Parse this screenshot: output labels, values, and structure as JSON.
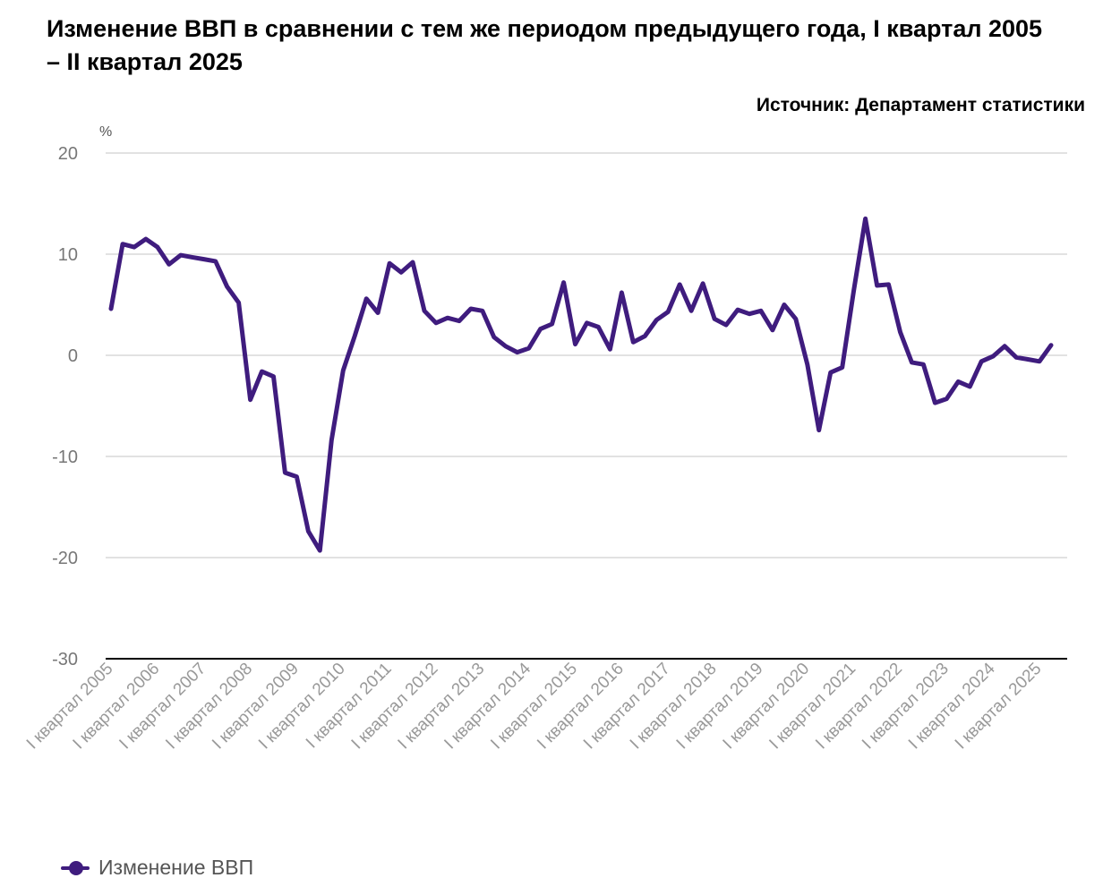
{
  "chart_data": {
    "type": "line",
    "title": "Изменение ВВП в сравнении с тем же периодом предыдущего года, I квартал 2005 – II квартал 2025",
    "source": "Источник: Департамент статистики",
    "ylabel": "%",
    "ylim": [
      -30,
      20
    ],
    "yticks": [
      "20",
      "10",
      "0",
      "-10",
      "-20",
      "-30"
    ],
    "x_tick_labels": [
      "I квартал 2005",
      "I квартал 2006",
      "I квартал 2007",
      "I квартал 2008",
      "I квартал 2009",
      "I квартал 2010",
      "I квартал 2011",
      "I квартал 2012",
      "I квартал 2013",
      "I квартал 2014",
      "I квартал 2015",
      "I квартал 2016",
      "I квартал 2017",
      "I квартал 2018",
      "I квартал 2019",
      "I квартал 2020",
      "I квартал 2021",
      "I квартал 2022",
      "I квартал 2023",
      "I квартал 2024",
      "I квартал 2025"
    ],
    "grid": true,
    "legend_position": "bottom-left",
    "series": [
      {
        "name": "Изменение ВВП",
        "color": "#3f1c7e",
        "values": [
          4.6,
          11.0,
          10.7,
          11.5,
          10.7,
          9.0,
          9.9,
          9.7,
          9.5,
          9.3,
          6.8,
          5.2,
          -4.4,
          -1.6,
          -2.1,
          -11.6,
          -12.0,
          -17.4,
          -19.3,
          -8.4,
          -1.5,
          1.9,
          5.6,
          4.2,
          9.1,
          8.2,
          9.2,
          4.4,
          3.2,
          3.7,
          3.4,
          4.6,
          4.4,
          1.8,
          0.9,
          0.3,
          0.7,
          2.6,
          3.1,
          7.2,
          1.1,
          3.2,
          2.8,
          0.6,
          6.2,
          1.3,
          1.9,
          3.5,
          4.3,
          7.0,
          4.4,
          7.1,
          3.6,
          3.0,
          4.5,
          4.1,
          4.4,
          2.5,
          5.0,
          3.6,
          -0.9,
          -7.4,
          -1.7,
          -1.2,
          6.4,
          13.5,
          6.9,
          7.0,
          2.3,
          -0.7,
          -0.9,
          -4.7,
          -4.3,
          -2.6,
          -3.1,
          -0.6,
          -0.1,
          0.9,
          -0.2,
          -0.4,
          -0.6,
          1.0
        ]
      }
    ]
  }
}
